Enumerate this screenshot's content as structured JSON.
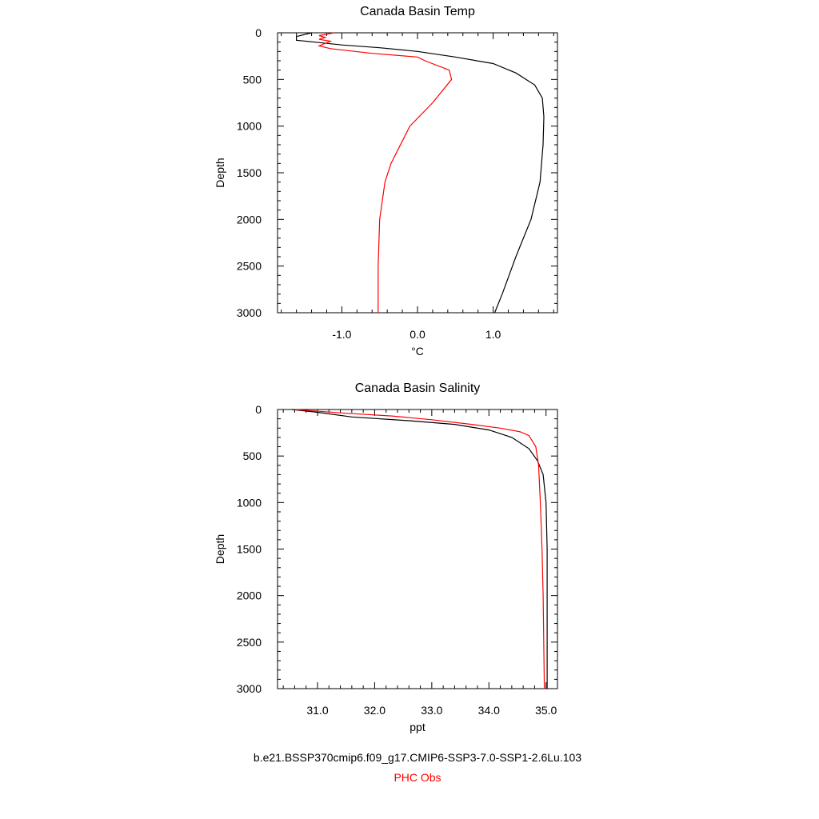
{
  "chart_data": [
    {
      "type": "line",
      "title": "Canada Basin Temp",
      "xlabel": "°C",
      "ylabel": "Depth",
      "xlim": [
        -1.85,
        1.85
      ],
      "ylim": [
        3000,
        0
      ],
      "y_inverted": true,
      "x_ticks": [
        -1.0,
        0.0,
        1.0
      ],
      "x_tick_labels": [
        "-1.0",
        "0.0",
        "1.0"
      ],
      "y_ticks": [
        0,
        500,
        1000,
        1500,
        2000,
        2500,
        3000
      ],
      "y_tick_labels": [
        "0",
        "500",
        "1000",
        "1500",
        "2000",
        "2500",
        "3000"
      ],
      "grid": false,
      "series": [
        {
          "name": "b.e21.BSSP370cmip6.f09_g17.CMIP6-SSP3-7.0-SSP1-2.6Lu.103",
          "color": "#000000",
          "points": [
            [
              -1.4,
              0
            ],
            [
              -1.6,
              40
            ],
            [
              -1.6,
              80
            ],
            [
              -1.35,
              100
            ],
            [
              -1.0,
              130
            ],
            [
              -0.5,
              160
            ],
            [
              0.0,
              200
            ],
            [
              0.5,
              260
            ],
            [
              1.0,
              330
            ],
            [
              1.3,
              430
            ],
            [
              1.55,
              560
            ],
            [
              1.65,
              700
            ],
            [
              1.67,
              900
            ],
            [
              1.66,
              1200
            ],
            [
              1.62,
              1600
            ],
            [
              1.5,
              2000
            ],
            [
              1.3,
              2400
            ],
            [
              1.12,
              2800
            ],
            [
              1.02,
              3000
            ]
          ]
        },
        {
          "name": "PHC Obs",
          "color": "#ff0000",
          "points": [
            [
              -1.1,
              0
            ],
            [
              -1.3,
              30
            ],
            [
              -1.22,
              50
            ],
            [
              -1.3,
              70
            ],
            [
              -1.15,
              90
            ],
            [
              -1.3,
              140
            ],
            [
              -1.15,
              170
            ],
            [
              -0.6,
              220
            ],
            [
              0.0,
              260
            ],
            [
              0.1,
              300
            ],
            [
              0.42,
              400
            ],
            [
              0.45,
              500
            ],
            [
              0.2,
              750
            ],
            [
              -0.1,
              1000
            ],
            [
              -0.35,
              1400
            ],
            [
              -0.43,
              1600
            ],
            [
              -0.5,
              2000
            ],
            [
              -0.52,
              2500
            ],
            [
              -0.52,
              3000
            ]
          ]
        }
      ]
    },
    {
      "type": "line",
      "title": "Canada Basin Salinity",
      "xlabel": "ppt",
      "ylabel": "Depth",
      "xlim": [
        30.3,
        35.2
      ],
      "ylim": [
        3000,
        0
      ],
      "y_inverted": true,
      "x_ticks": [
        31.0,
        32.0,
        33.0,
        34.0,
        35.0
      ],
      "x_tick_labels": [
        "31.0",
        "32.0",
        "33.0",
        "34.0",
        "35.0"
      ],
      "y_ticks": [
        0,
        500,
        1000,
        1500,
        2000,
        2500,
        3000
      ],
      "y_tick_labels": [
        "0",
        "500",
        "1000",
        "1500",
        "2000",
        "2500",
        "3000"
      ],
      "grid": false,
      "series": [
        {
          "name": "b.e21.BSSP370cmip6.f09_g17.CMIP6-SSP3-7.0-SSP1-2.6Lu.103",
          "color": "#000000",
          "points": [
            [
              30.55,
              0
            ],
            [
              31.0,
              30
            ],
            [
              31.6,
              80
            ],
            [
              32.6,
              120
            ],
            [
              33.4,
              160
            ],
            [
              34.0,
              220
            ],
            [
              34.4,
              300
            ],
            [
              34.7,
              420
            ],
            [
              34.85,
              550
            ],
            [
              34.95,
              700
            ],
            [
              35.0,
              1000
            ],
            [
              35.02,
              1500
            ],
            [
              35.02,
              2000
            ],
            [
              35.02,
              3000
            ]
          ]
        },
        {
          "name": "PHC Obs",
          "color": "#ff0000",
          "points": [
            [
              30.6,
              0
            ],
            [
              31.5,
              40
            ],
            [
              32.3,
              70
            ],
            [
              33.0,
              110
            ],
            [
              33.7,
              160
            ],
            [
              34.2,
              200
            ],
            [
              34.55,
              240
            ],
            [
              34.7,
              280
            ],
            [
              34.82,
              400
            ],
            [
              34.87,
              600
            ],
            [
              34.9,
              1000
            ],
            [
              34.93,
              1500
            ],
            [
              34.95,
              2000
            ],
            [
              34.97,
              3000
            ]
          ]
        }
      ]
    }
  ],
  "legend": {
    "model_label": "b.e21.BSSP370cmip6.f09_g17.CMIP6-SSP3-7.0-SSP1-2.6Lu.103",
    "model_color": "#000000",
    "obs_label": "PHC Obs",
    "obs_color": "#ff0000",
    "placement": "bottom-center"
  }
}
